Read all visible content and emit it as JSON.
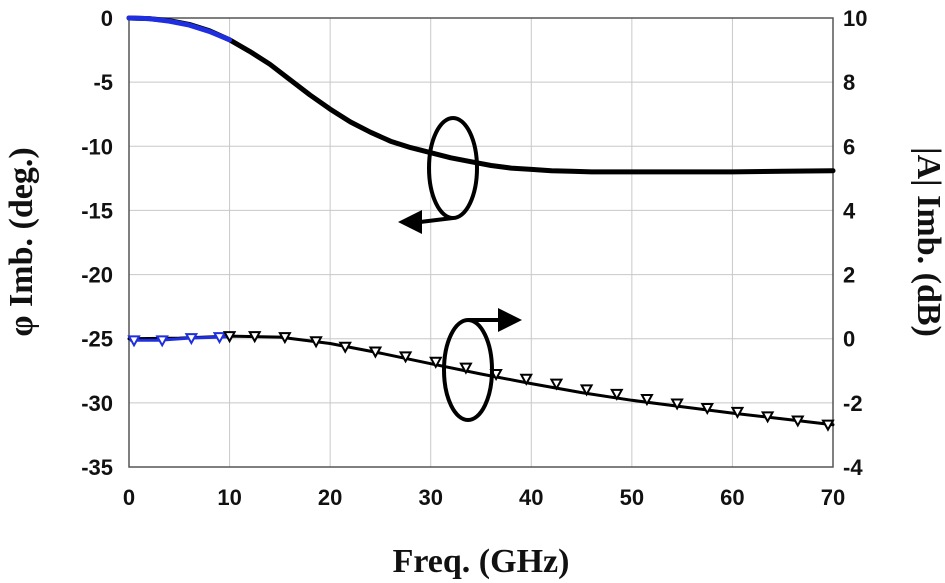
{
  "chart_data": {
    "type": "line",
    "xlabel": "Freq. (GHz)",
    "ylabel_left": "φ Imb. (deg.)",
    "ylabel_right": "|A| Imb. (dB)",
    "xlim": [
      0,
      70
    ],
    "ylim_left": [
      -35,
      0
    ],
    "ylim_right": [
      -4,
      10
    ],
    "x_ticks": [
      "0",
      "10",
      "20",
      "30",
      "40",
      "50",
      "60",
      "70"
    ],
    "y_left_ticks": [
      "0",
      "-5",
      "-10",
      "-15",
      "-20",
      "-25",
      "-30",
      "-35"
    ],
    "y_right_ticks": [
      "10",
      "8",
      "6",
      "4",
      "2",
      "0",
      "-2",
      "-4"
    ],
    "grid": true,
    "colors": {
      "measured": "#1f2fe0",
      "simulated": "#000000"
    },
    "series": [
      {
        "axis": "left",
        "style": "line",
        "x": [
          0,
          2,
          4,
          6,
          8,
          10,
          12,
          14,
          16,
          18,
          20,
          22,
          24,
          26,
          28,
          30,
          32,
          34,
          36,
          38,
          40,
          42,
          44,
          46,
          48,
          50,
          55,
          60,
          65,
          70
        ],
        "y": [
          0,
          -0.05,
          -0.2,
          -0.5,
          -1.0,
          -1.7,
          -2.6,
          -3.6,
          -4.8,
          -6.0,
          -7.1,
          -8.1,
          -8.9,
          -9.6,
          -10.1,
          -10.5,
          -10.9,
          -11.2,
          -11.5,
          -11.7,
          -11.8,
          -11.9,
          -11.95,
          -12.0,
          -12.0,
          -12.0,
          -12.0,
          -12.0,
          -11.95,
          -11.9
        ]
      },
      {
        "axis": "left",
        "style": "line",
        "x": [
          0,
          2,
          4,
          6,
          8,
          10
        ],
        "y": [
          0,
          -0.05,
          -0.25,
          -0.55,
          -1.05,
          -1.7
        ]
      },
      {
        "axis": "right",
        "style": "line",
        "x": [
          0,
          5,
          10,
          15,
          20,
          25,
          30,
          35,
          40,
          45,
          50,
          55,
          60,
          65,
          70
        ],
        "y": [
          0,
          0.02,
          0.08,
          0.05,
          -0.15,
          -0.45,
          -0.78,
          -1.1,
          -1.4,
          -1.68,
          -1.92,
          -2.12,
          -2.32,
          -2.5,
          -2.68
        ]
      },
      {
        "axis": "right",
        "style": "markers",
        "x": [
          12.5,
          15.5,
          18.6,
          21.5,
          24.5,
          27.5,
          30.5,
          33.5,
          36.5,
          39.5,
          42.5,
          45.5,
          48.5,
          51.5,
          54.5,
          57.5,
          60.5,
          63.5,
          66.5,
          69.5
        ],
        "y": [
          0.08,
          0.05,
          -0.08,
          -0.25,
          -0.4,
          -0.55,
          -0.72,
          -0.9,
          -1.1,
          -1.25,
          -1.4,
          -1.58,
          -1.72,
          -1.88,
          -2.02,
          -2.16,
          -2.28,
          -2.42,
          -2.55,
          -2.68
        ]
      },
      {
        "axis": "right",
        "style": "line",
        "x": [
          0.2,
          3,
          6,
          9,
          10
        ],
        "y": [
          -0.05,
          -0.05,
          0.02,
          0.05,
          0.06
        ]
      },
      {
        "axis": "right",
        "style": "markers",
        "x": [
          0.5,
          3.3,
          6.2,
          9.0
        ],
        "y": [
          -0.05,
          -0.05,
          0.02,
          0.05
        ]
      },
      {
        "axis": "right",
        "style": "markers",
        "x": [
          10
        ],
        "y": [
          0.08
        ]
      }
    ]
  }
}
